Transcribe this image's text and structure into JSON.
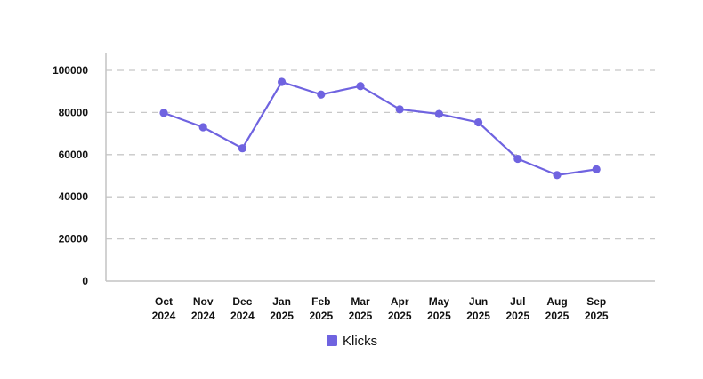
{
  "chart_data": {
    "type": "line",
    "categories": [
      [
        "Oct",
        "2024"
      ],
      [
        "Nov",
        "2024"
      ],
      [
        "Dec",
        "2024"
      ],
      [
        "Jan",
        "2025"
      ],
      [
        "Feb",
        "2025"
      ],
      [
        "Mar",
        "2025"
      ],
      [
        "Apr",
        "2025"
      ],
      [
        "May",
        "2025"
      ],
      [
        "Jun",
        "2025"
      ],
      [
        "Jul",
        "2025"
      ],
      [
        "Aug",
        "2025"
      ],
      [
        "Sep",
        "2025"
      ]
    ],
    "series": [
      {
        "name": "Klicks",
        "color": "#6f63e0",
        "values": [
          79800,
          73000,
          63000,
          94500,
          88500,
          92500,
          81500,
          79300,
          75300,
          58000,
          50300,
          53000
        ]
      }
    ],
    "ylim": [
      0,
      100000
    ],
    "yticks": [
      "0",
      "20000",
      "40000",
      "60000",
      "80000",
      "100000"
    ],
    "grid": true,
    "legend_position": "bottom-center"
  }
}
